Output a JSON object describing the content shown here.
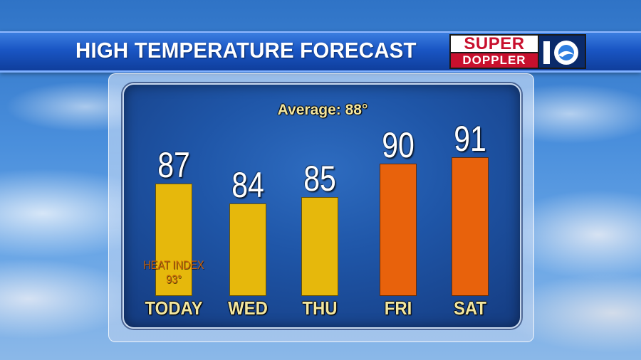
{
  "header": {
    "title": "HIGH TEMPERATURE FORECAST",
    "logo_text_top": "SUPER",
    "logo_text_bottom": "DOPPLER",
    "logo_number": "10"
  },
  "colors": {
    "title_bar": "#1a56c4",
    "panel": "#1f56a8",
    "bar_normal": "#e6b80c",
    "bar_hot": "#e8620c",
    "label_text": "#f2e6a0",
    "heat_index_text": "#c8600a"
  },
  "chart_data": {
    "type": "bar",
    "title": "Average: 88°",
    "categories": [
      "TODAY",
      "WED",
      "THU",
      "FRI",
      "SAT"
    ],
    "values": [
      87,
      84,
      85,
      90,
      91
    ],
    "value_labels": [
      "87",
      "84",
      "85",
      "90",
      "91"
    ],
    "bar_colors": [
      "#e6b80c",
      "#e6b80c",
      "#e6b80c",
      "#e8620c",
      "#e8620c"
    ],
    "ylim": [
      70,
      95
    ],
    "grid": false,
    "annotations": [
      {
        "category": "TODAY",
        "line1": "HEAT INDEX",
        "line2": "93°"
      }
    ]
  }
}
